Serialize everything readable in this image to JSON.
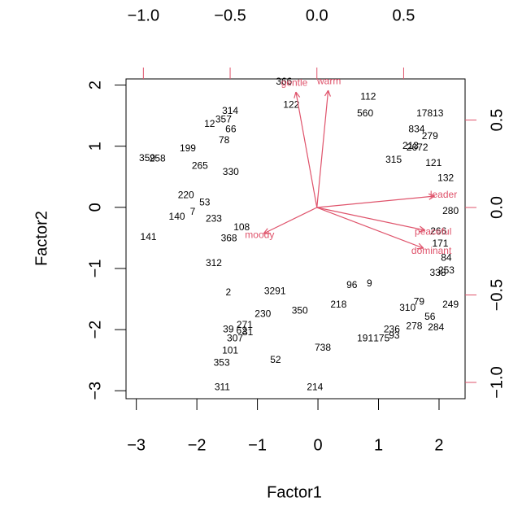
{
  "chart_data": {
    "type": "biplot",
    "xlabel": "Factor1",
    "ylabel": "Factor2",
    "xlim": [
      -3.17,
      2.43
    ],
    "xticks": [
      {
        "value": -3,
        "label": "−3"
      },
      {
        "value": -2,
        "label": "−2"
      },
      {
        "value": -1,
        "label": "−1"
      },
      0,
      1,
      2
    ],
    "ylim": [
      -3.13,
      2.1
    ],
    "yticks": [
      {
        "value": -3,
        "label": "−3"
      },
      {
        "value": -2,
        "label": "−2"
      },
      {
        "value": -1,
        "label": "−1"
      },
      0,
      1,
      2
    ],
    "x2lim": [
      -1.1,
      0.854
    ],
    "x2ticks": [
      {
        "value": -1,
        "label": "−1.0"
      },
      {
        "value": -0.5,
        "label": "−0.5"
      },
      {
        "value": 0,
        "label": "0.0"
      },
      {
        "value": 0.5,
        "label": "0.5"
      }
    ],
    "y2lim": [
      -1.093,
      0.735
    ],
    "y2ticks": [
      {
        "value": -1,
        "label": "−1.0"
      },
      {
        "value": -0.5,
        "label": "−0.5"
      },
      {
        "value": 0,
        "label": "0.0"
      },
      {
        "value": 0.5,
        "label": "0.5"
      }
    ],
    "points": {
      "color": "#000000",
      "labels": [
        "366",
        "12",
        "314",
        "357",
        "66",
        "78",
        "122",
        "112",
        "560",
        "17813",
        "834",
        "279",
        "2672",
        "359",
        "258",
        "199",
        "265",
        "330",
        "121",
        "132",
        "213",
        "315",
        "220",
        "53",
        "140",
        "7",
        "233",
        "141",
        "368",
        "108",
        "312",
        "280",
        "266",
        "171",
        "84",
        "253",
        "338",
        "9",
        "96",
        "2",
        "3291",
        "230",
        "350",
        "218",
        "79",
        "310",
        "249",
        "56",
        "278",
        "284",
        "236",
        "93",
        "191",
        "175",
        "738",
        "271",
        "39",
        "62",
        "31",
        "307",
        "101",
        "353",
        "52",
        "311",
        "214"
      ],
      "x": [
        -0.56,
        -1.79,
        -1.45,
        -1.56,
        -1.44,
        -1.55,
        -0.44,
        0.83,
        0.78,
        1.85,
        1.63,
        1.85,
        1.64,
        -2.82,
        -2.65,
        -2.15,
        -1.95,
        -1.44,
        1.91,
        2.11,
        1.53,
        1.25,
        -2.18,
        -1.87,
        -2.33,
        -2.07,
        -1.72,
        -2.8,
        -1.47,
        -1.26,
        -1.72,
        2.19,
        1.99,
        2.02,
        2.12,
        2.12,
        1.98,
        0.85,
        0.56,
        -1.48,
        -0.71,
        -0.91,
        -0.3,
        0.34,
        1.67,
        1.48,
        2.19,
        1.85,
        1.59,
        1.95,
        1.22,
        1.26,
        0.78,
        1.05,
        0.08,
        -1.21,
        -1.48,
        -1.26,
        -1.16,
        -1.37,
        -1.45,
        -1.59,
        -0.7,
        -1.58,
        -0.05
      ],
      "y": [
        2.05,
        1.36,
        1.57,
        1.43,
        1.27,
        1.09,
        1.67,
        1.8,
        1.53,
        1.53,
        1.27,
        1.16,
        0.97,
        0.8,
        0.79,
        0.96,
        0.67,
        0.57,
        0.72,
        0.47,
        1.0,
        0.77,
        0.19,
        0.07,
        -0.16,
        -0.08,
        -0.19,
        -0.49,
        -0.51,
        -0.33,
        -0.92,
        -0.07,
        -0.4,
        -0.6,
        -0.83,
        -1.04,
        -1.08,
        -1.25,
        -1.28,
        -1.4,
        -1.38,
        -1.75,
        -1.7,
        -1.6,
        -1.55,
        -1.65,
        -1.6,
        -1.8,
        -1.95,
        -1.97,
        -2.0,
        -2.1,
        -2.15,
        -2.15,
        -2.3,
        -1.93,
        -2.0,
        -2.02,
        -2.05,
        -2.15,
        -2.35,
        -2.55,
        -2.5,
        -2.95,
        -2.95
      ]
    },
    "loadings": {
      "color": "#DF536B",
      "names": [
        "warm",
        "gentle",
        "leader",
        "dominant",
        "peaceful",
        "moody"
      ],
      "x": [
        0.07,
        -0.13,
        0.73,
        0.66,
        0.67,
        -0.33
      ],
      "y": [
        0.72,
        0.71,
        0.07,
        -0.25,
        -0.14,
        -0.16
      ]
    }
  }
}
